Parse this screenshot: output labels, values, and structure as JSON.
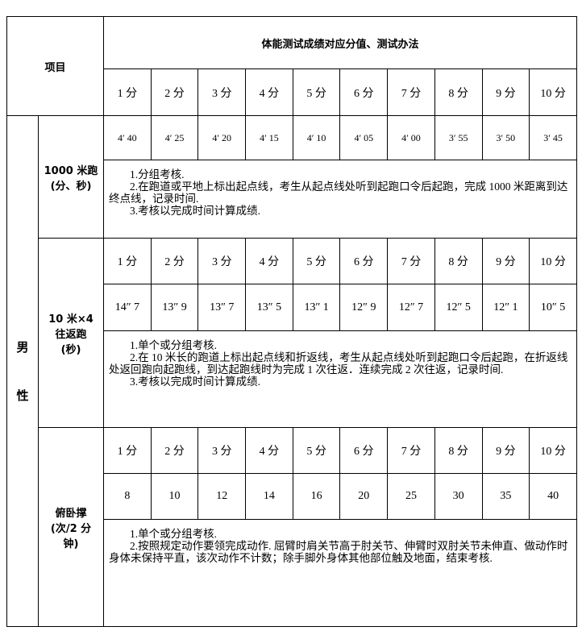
{
  "header": {
    "item_label": "项目",
    "title": "体能测试成绩对应分值、测试办法",
    "scores": [
      "1 分",
      "2 分",
      "3 分",
      "4 分",
      "5 分",
      "6 分",
      "7 分",
      "8 分",
      "9 分",
      "10 分"
    ]
  },
  "gender": [
    "男",
    "性"
  ],
  "events": [
    {
      "name_lines": [
        "1000 米跑",
        "(分、秒)"
      ],
      "values": [
        "4′ 40",
        "4′ 25",
        "4′ 20",
        "4′ 15",
        "4′ 10",
        "4′ 05",
        "4′ 00",
        "3′ 55",
        "3′ 50",
        "3′ 45"
      ],
      "method": [
        "1.分组考核.",
        "2.在跑道或平地上标出起点线，考生从起点线处听到起跑口令后起跑，完成 1000 米距离到达终点线，记录时间.",
        "3.考核以完成时间计算成绩."
      ]
    },
    {
      "name_lines": [
        "10 米×4",
        "往返跑",
        "(秒)"
      ],
      "scores": [
        "1 分",
        "2 分",
        "3 分",
        "4 分",
        "5 分",
        "6 分",
        "7 分",
        "8 分",
        "9 分",
        "10 分"
      ],
      "values": [
        "14″ 7",
        "13″ 9",
        "13″ 7",
        "13″ 5",
        "13″ 1",
        "12″ 9",
        "12″ 7",
        "12″ 5",
        "12″ 1",
        "10″ 5"
      ],
      "method": [
        "1.单个或分组考核.",
        "2.在 10 米长的跑道上标出起点线和折返线，考生从起点线处听到起跑口令后起跑，在折返线处返回跑向起跑线，到达起跑线时为完成 1 次往返．连续完成 2 次往返，记录时间.",
        "3.考核以完成时间计算成绩."
      ]
    },
    {
      "name_lines": [
        "俯卧撑",
        "(次/2 分",
        "钟)"
      ],
      "scores": [
        "1 分",
        "2 分",
        "3 分",
        "4 分",
        "5 分",
        "6 分",
        "7 分",
        "8 分",
        "9 分",
        "10 分"
      ],
      "values": [
        "8",
        "10",
        "12",
        "14",
        "16",
        "20",
        "25",
        "30",
        "35",
        "40"
      ],
      "method": [
        "1.单个或分组考核.",
        "2.按照规定动作要领完成动作. 屈臂时肩关节高于肘关节、伸臂时双肘关节未伸直、做动作时身体未保持平直，该次动作不计数；除手脚外身体其他部位触及地面，结束考核."
      ]
    }
  ]
}
